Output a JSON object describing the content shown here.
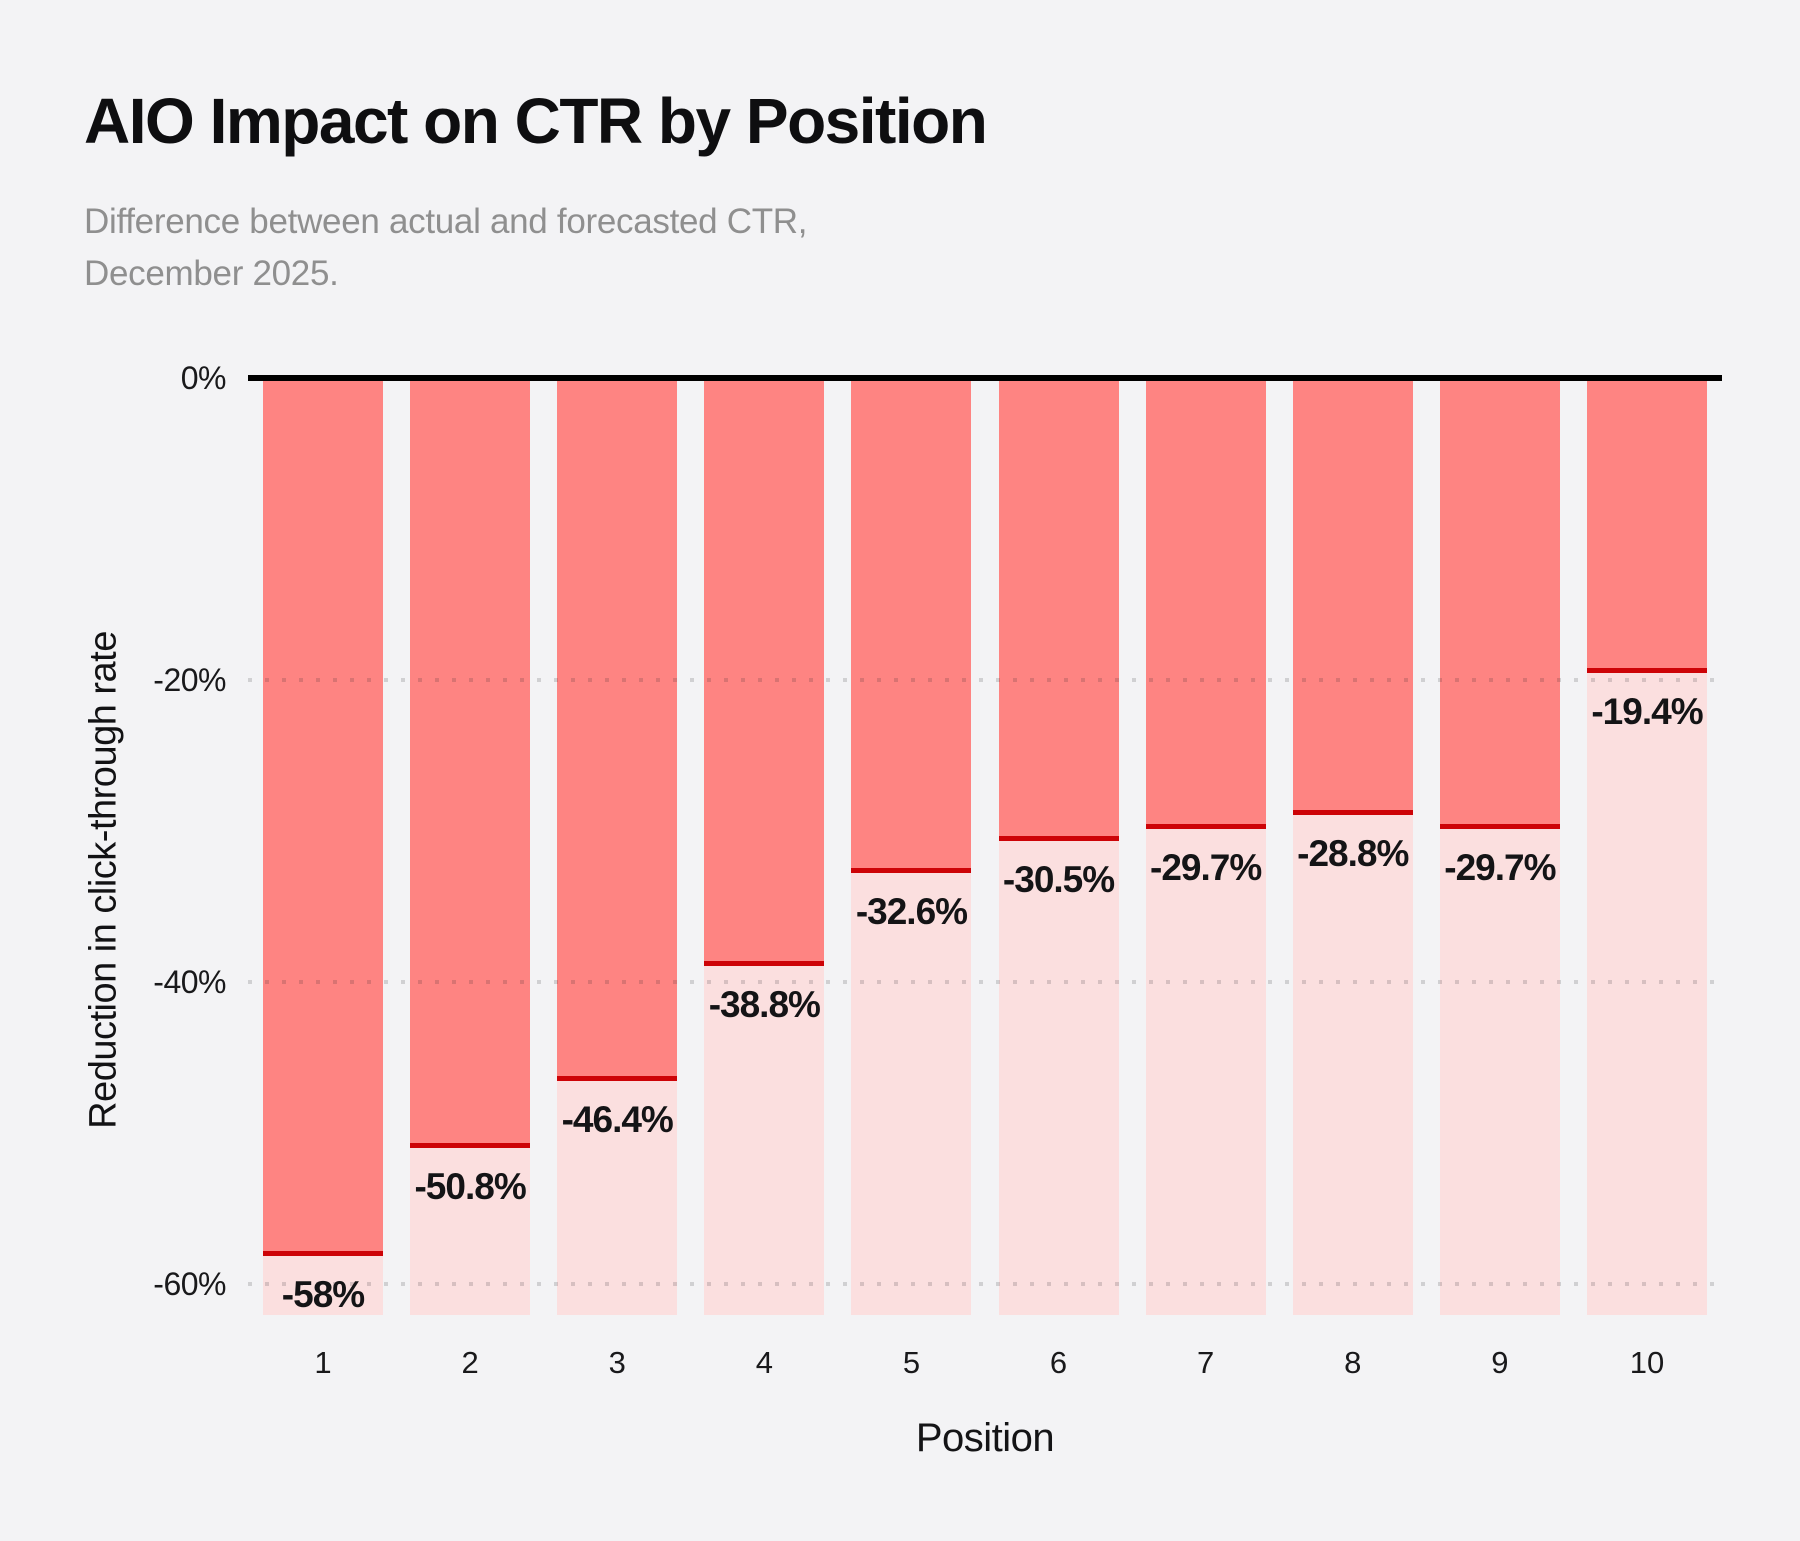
{
  "header": {
    "title": "AIO Impact on CTR by Position",
    "subtitle_lines": [
      "Difference between actual and forecasted CTR,",
      "December 2025."
    ]
  },
  "chart_data": {
    "type": "bar",
    "title": "AIO Impact on CTR by Position",
    "subtitle": "Difference between actual and forecasted CTR, December 2025.",
    "xlabel": "Position",
    "ylabel": "Reduction in click-through rate",
    "categories": [
      "1",
      "2",
      "3",
      "4",
      "5",
      "6",
      "7",
      "8",
      "9",
      "10"
    ],
    "values": [
      -58,
      -50.8,
      -46.4,
      -38.8,
      -32.6,
      -30.5,
      -29.7,
      -28.8,
      -29.7,
      -19.4
    ],
    "value_labels": [
      "-58%",
      "-50.8%",
      "-46.4%",
      "-38.8%",
      "-32.6%",
      "-30.5%",
      "-29.7%",
      "-28.8%",
      "-29.7%",
      "-19.4%"
    ],
    "yticks": [
      0,
      -20,
      -40,
      -60
    ],
    "ytick_labels": [
      "0%",
      "-20%",
      "-40%",
      "-60%"
    ],
    "ylim": [
      -61.8,
      0
    ],
    "grid": "horizontal dotted lines at -20%, -40%, -60% drawn over bars",
    "legend_position": "none",
    "bar_style": "dark segment from 0 to value, red marker line at value, light segment continues to axis bottom"
  },
  "colors": {
    "background": "#f3f3f5",
    "bar_dark": "#fe8482",
    "bar_light": "#fbdfdf",
    "marker_line": "#cd0307",
    "zero_axis_line": "#000000",
    "subtitle_text": "#8f8f8f",
    "gridline_dots": "rgba(25,25,28,0.16)"
  }
}
